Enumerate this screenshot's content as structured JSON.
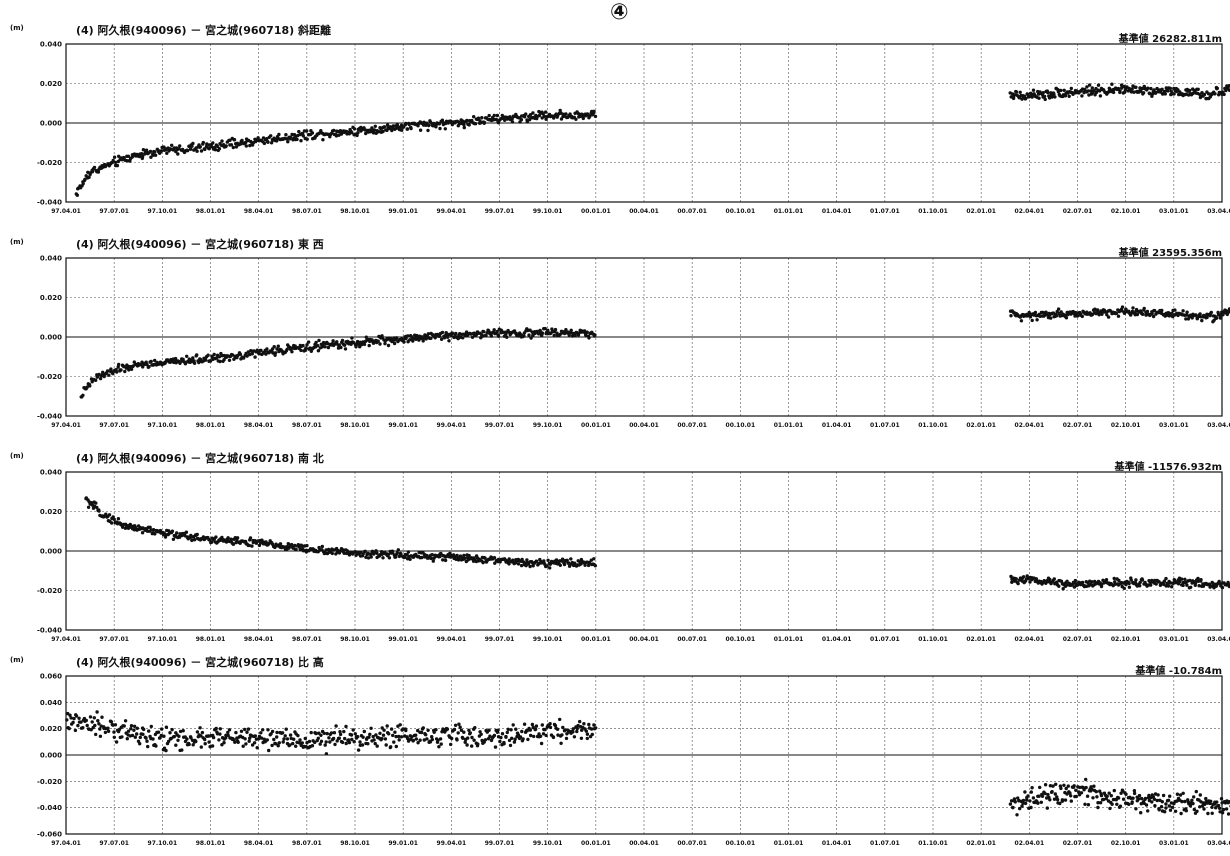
{
  "page_mark": "④",
  "chart_data": [
    {
      "type": "scatter",
      "title": "(4)  阿久根(940096)  －  宮之城(960718)   斜距離",
      "base_value": "基準値 26282.811m",
      "unit": "(m)",
      "y_ticks": [
        "0.040",
        "0.020",
        "0.000",
        "-0.020",
        "-0.040"
      ],
      "ylim": [
        -0.04,
        0.04
      ],
      "x_ticks": [
        "97.04.01",
        "97.07.01",
        "97.10.01",
        "98.01.01",
        "98.04.01",
        "98.07.01",
        "98.10.01",
        "99.01.01",
        "99.04.01",
        "99.07.01",
        "99.10.01",
        "00.01.01",
        "00.04.01",
        "00.07.01",
        "00.10.01",
        "01.01.01",
        "01.04.01",
        "01.07.01",
        "01.10.01",
        "02.01.01",
        "02.04.01",
        "02.07.01",
        "02.10.01",
        "03.01.01",
        "03.04.01"
      ],
      "trend": [
        [
          0.2,
          -0.036
        ],
        [
          0.5,
          -0.025
        ],
        [
          1,
          -0.02
        ],
        [
          1.5,
          -0.016
        ],
        [
          2,
          -0.014
        ],
        [
          3,
          -0.012
        ],
        [
          4,
          -0.009
        ],
        [
          5,
          -0.006
        ],
        [
          6,
          -0.004
        ],
        [
          7,
          -0.002
        ],
        [
          8,
          0
        ],
        [
          9,
          0.002
        ],
        [
          10,
          0.004
        ],
        [
          11,
          0.004
        ]
      ],
      "trend2": [
        [
          19.6,
          0.014
        ],
        [
          20,
          0.014
        ],
        [
          21,
          0.016
        ],
        [
          22,
          0.017
        ],
        [
          23,
          0.016
        ],
        [
          23.7,
          0.014
        ],
        [
          24,
          0.016
        ],
        [
          24.3,
          0.017
        ]
      ],
      "noise": 0.0035
    },
    {
      "type": "scatter",
      "title": "(4)  阿久根(940096)  －  宮之城(960718)   東  西",
      "base_value": "基準値 23595.356m",
      "unit": "(m)",
      "y_ticks": [
        "0.040",
        "0.020",
        "0.000",
        "-0.020",
        "-0.040"
      ],
      "ylim": [
        -0.04,
        0.04
      ],
      "x_ticks": [
        "97.04.01",
        "97.07.01",
        "97.10.01",
        "98.01.01",
        "98.04.01",
        "98.07.01",
        "98.10.01",
        "99.01.01",
        "99.04.01",
        "99.07.01",
        "99.10.01",
        "00.01.01",
        "00.04.01",
        "00.07.01",
        "00.10.01",
        "01.01.01",
        "01.04.01",
        "01.07.01",
        "01.10.01",
        "02.01.01",
        "02.04.01",
        "02.07.01",
        "02.10.01",
        "03.01.01",
        "03.04.01"
      ],
      "trend": [
        [
          0.3,
          -0.03
        ],
        [
          0.6,
          -0.021
        ],
        [
          1,
          -0.017
        ],
        [
          1.5,
          -0.014
        ],
        [
          2,
          -0.013
        ],
        [
          3,
          -0.011
        ],
        [
          4,
          -0.008
        ],
        [
          5,
          -0.005
        ],
        [
          6,
          -0.003
        ],
        [
          7,
          -0.001
        ],
        [
          8,
          0.001
        ],
        [
          9,
          0.002
        ],
        [
          10,
          0.002
        ],
        [
          11,
          0.002
        ]
      ],
      "trend2": [
        [
          19.6,
          0.011
        ],
        [
          20,
          0.011
        ],
        [
          21,
          0.012
        ],
        [
          22,
          0.013
        ],
        [
          23,
          0.012
        ],
        [
          23.8,
          0.01
        ],
        [
          24,
          0.012
        ],
        [
          24.3,
          0.012
        ]
      ],
      "noise": 0.003
    },
    {
      "type": "scatter",
      "title": "(4)  阿久根(940096)  －  宮之城(960718)   南  北",
      "base_value": "基準値 -11576.932m",
      "unit": "(m)",
      "y_ticks": [
        "0.040",
        "0.020",
        "0.000",
        "-0.020",
        "-0.040"
      ],
      "ylim": [
        -0.04,
        0.04
      ],
      "x_ticks": [
        "97.04.01",
        "97.07.01",
        "97.10.01",
        "98.01.01",
        "98.04.01",
        "98.07.01",
        "98.10.01",
        "99.01.01",
        "99.04.01",
        "99.07.01",
        "99.10.01",
        "00.01.01",
        "00.04.01",
        "00.07.01",
        "00.10.01",
        "01.01.01",
        "01.04.01",
        "01.07.01",
        "01.10.01",
        "02.01.01",
        "02.04.01",
        "02.07.01",
        "02.10.01",
        "03.01.01",
        "03.04.01"
      ],
      "trend": [
        [
          0.4,
          0.026
        ],
        [
          0.8,
          0.018
        ],
        [
          1.2,
          0.013
        ],
        [
          2,
          0.009
        ],
        [
          3,
          0.006
        ],
        [
          4,
          0.004
        ],
        [
          5,
          0.001
        ],
        [
          6,
          -0.001
        ],
        [
          7,
          -0.002
        ],
        [
          8,
          -0.003
        ],
        [
          9,
          -0.005
        ],
        [
          10,
          -0.006
        ],
        [
          11,
          -0.006
        ]
      ],
      "trend2": [
        [
          19.6,
          -0.014
        ],
        [
          20,
          -0.015
        ],
        [
          21,
          -0.017
        ],
        [
          22,
          -0.016
        ],
        [
          23,
          -0.016
        ],
        [
          24,
          -0.017
        ],
        [
          24.3,
          -0.018
        ]
      ],
      "noise": 0.003
    },
    {
      "type": "scatter",
      "title": "(4)  阿久根(940096)  －  宮之城(960718)   比  高",
      "base_value": "基準値 -10.784m",
      "unit": "(m)",
      "y_ticks": [
        "0.060",
        "0.040",
        "0.020",
        "0.000",
        "-0.020",
        "-0.040",
        "-0.060"
      ],
      "ylim": [
        -0.06,
        0.06
      ],
      "x_ticks": [
        "97.04.01",
        "97.07.01",
        "97.10.01",
        "98.01.01",
        "98.04.01",
        "98.07.01",
        "98.10.01",
        "99.01.01",
        "99.04.01",
        "99.07.01",
        "99.10.01",
        "00.01.01",
        "00.04.01",
        "00.07.01",
        "00.10.01",
        "01.01.01",
        "01.04.01",
        "01.07.01",
        "01.10.01",
        "02.01.01",
        "02.04.01",
        "02.07.01",
        "02.10.01",
        "03.01.01",
        "03.04.01"
      ],
      "trend": [
        [
          0,
          0.025
        ],
        [
          1,
          0.02
        ],
        [
          2,
          0.012
        ],
        [
          3,
          0.013
        ],
        [
          4,
          0.012
        ],
        [
          5,
          0.011
        ],
        [
          6,
          0.013
        ],
        [
          7,
          0.014
        ],
        [
          8,
          0.015
        ],
        [
          9,
          0.013
        ],
        [
          10,
          0.018
        ],
        [
          11,
          0.02
        ]
      ],
      "trend2": [
        [
          19.6,
          -0.038
        ],
        [
          20,
          -0.032
        ],
        [
          21,
          -0.028
        ],
        [
          22,
          -0.034
        ],
        [
          23,
          -0.036
        ],
        [
          24,
          -0.038
        ],
        [
          24.3,
          -0.038
        ]
      ],
      "noise": 0.012
    }
  ]
}
